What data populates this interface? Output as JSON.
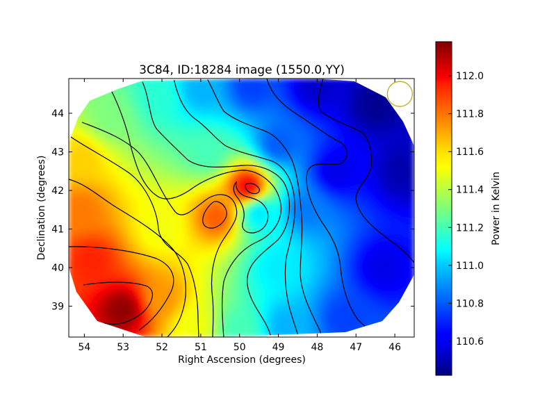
{
  "chart_data": {
    "type": "heatmap",
    "title": "3C84, ID:18284 image (1550.0,YY)",
    "xlabel": "Right Ascension (degrees)",
    "ylabel": "Declination (degrees)",
    "xlim": [
      54.4,
      45.5
    ],
    "ylim": [
      38.2,
      44.9
    ],
    "xticks": [
      54,
      53,
      52,
      51,
      50,
      49,
      48,
      47,
      46
    ],
    "yticks": [
      39,
      40,
      41,
      42,
      43,
      44
    ],
    "colorbar": {
      "label": "Power in Kelvin",
      "range": [
        110.42,
        112.18
      ],
      "ticks": [
        110.6,
        110.8,
        111.0,
        111.2,
        111.4,
        111.6,
        111.8,
        112.0
      ],
      "colormap": "jet"
    },
    "contours": true,
    "beam_marker": {
      "ra": 45.87,
      "dec": 44.5,
      "color": "#b8b020"
    },
    "field_samples": [
      {
        "ra": 53.0,
        "dec": 38.9,
        "value": 112.15
      },
      {
        "ra": 53.8,
        "dec": 40.2,
        "value": 111.9
      },
      {
        "ra": 54.1,
        "dec": 41.5,
        "value": 111.75
      },
      {
        "ra": 54.1,
        "dec": 42.8,
        "value": 111.6
      },
      {
        "ra": 53.3,
        "dec": 43.9,
        "value": 111.3
      },
      {
        "ra": 52.1,
        "dec": 44.4,
        "value": 111.15
      },
      {
        "ra": 51.0,
        "dec": 44.6,
        "value": 110.95
      },
      {
        "ra": 49.7,
        "dec": 44.7,
        "value": 110.75
      },
      {
        "ra": 48.0,
        "dec": 44.7,
        "value": 110.55
      },
      {
        "ra": 46.5,
        "dec": 44.2,
        "value": 110.45
      },
      {
        "ra": 45.8,
        "dec": 42.5,
        "value": 110.5
      },
      {
        "ra": 46.3,
        "dec": 40.0,
        "value": 110.6
      },
      {
        "ra": 47.3,
        "dec": 38.7,
        "value": 110.75
      },
      {
        "ra": 48.8,
        "dec": 38.5,
        "value": 110.95
      },
      {
        "ra": 50.0,
        "dec": 38.4,
        "value": 111.2
      },
      {
        "ra": 51.2,
        "dec": 38.5,
        "value": 111.5
      },
      {
        "ra": 52.0,
        "dec": 39.2,
        "value": 111.7
      },
      {
        "ra": 50.6,
        "dec": 41.3,
        "value": 111.8
      },
      {
        "ra": 49.8,
        "dec": 42.1,
        "value": 111.95
      },
      {
        "ra": 49.5,
        "dec": 41.4,
        "value": 111.05
      },
      {
        "ra": 52.0,
        "dec": 41.0,
        "value": 111.5
      },
      {
        "ra": 49.0,
        "dec": 40.0,
        "value": 111.05
      },
      {
        "ra": 48.3,
        "dec": 41.5,
        "value": 110.85
      },
      {
        "ra": 47.5,
        "dec": 42.5,
        "value": 110.6
      },
      {
        "ra": 50.8,
        "dec": 43.0,
        "value": 111.2
      },
      {
        "ra": 49.0,
        "dec": 43.2,
        "value": 110.8
      }
    ]
  }
}
